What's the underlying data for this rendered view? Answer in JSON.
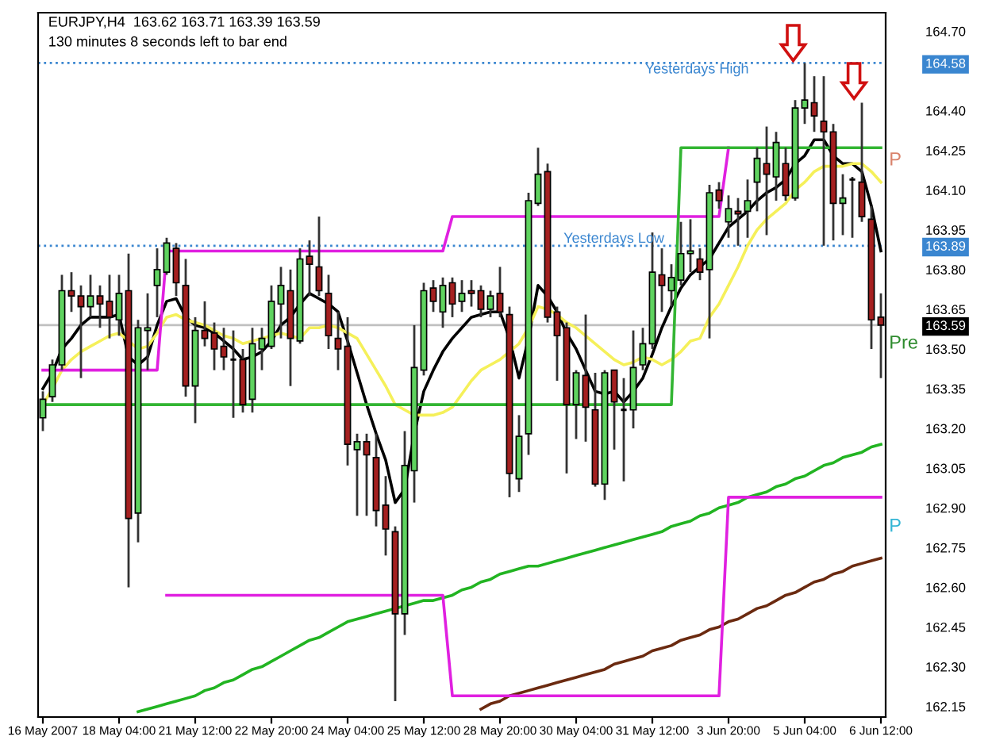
{
  "chart_data": {
    "type": "candlestick",
    "categories": [
      "16 May 2007",
      null,
      null,
      null,
      null,
      null,
      null,
      null,
      "18 May 04:00",
      null,
      null,
      null,
      null,
      null,
      null,
      null,
      "21 May 12:00",
      null,
      null,
      null,
      null,
      null,
      null,
      null,
      "22 May 20:00",
      null,
      null,
      null,
      null,
      null,
      null,
      null,
      "24 May 04:00",
      null,
      null,
      null,
      null,
      null,
      null,
      null,
      "25 May 12:00",
      null,
      null,
      null,
      null,
      null,
      null,
      null,
      "28 May 20:00",
      null,
      null,
      null,
      null,
      null,
      null,
      null,
      "30 May 04:00",
      null,
      null,
      null,
      null,
      null,
      null,
      null,
      "31 May 12:00",
      null,
      null,
      null,
      null,
      null,
      null,
      null,
      "3 Jun 20:00",
      null,
      null,
      null,
      null,
      null,
      null,
      null,
      "5 Jun 04:00",
      null,
      null,
      null,
      null,
      null,
      null,
      null,
      "6 Jun 12:00"
    ],
    "ohlc": [
      [
        163.24,
        163.34,
        163.19,
        163.31
      ],
      [
        163.32,
        163.46,
        163.3,
        163.44
      ],
      [
        163.44,
        163.78,
        163.42,
        163.72
      ],
      [
        163.72,
        163.79,
        163.64,
        163.7
      ],
      [
        163.7,
        163.74,
        163.39,
        163.66
      ],
      [
        163.66,
        163.78,
        163.62,
        163.7
      ],
      [
        163.7,
        163.74,
        163.58,
        163.67
      ],
      [
        163.68,
        163.78,
        163.54,
        163.62
      ],
      [
        163.61,
        163.78,
        163.55,
        163.71
      ],
      [
        163.72,
        163.86,
        162.6,
        162.86
      ],
      [
        162.88,
        163.61,
        162.77,
        163.58
      ],
      [
        163.57,
        163.71,
        163.42,
        163.58
      ],
      [
        163.74,
        163.88,
        163.62,
        163.8
      ],
      [
        163.79,
        163.92,
        163.78,
        163.9
      ],
      [
        163.88,
        163.9,
        163.7,
        163.75
      ],
      [
        163.74,
        163.84,
        163.32,
        163.36
      ],
      [
        163.36,
        163.62,
        163.22,
        163.57
      ],
      [
        163.57,
        163.68,
        163.51,
        163.54
      ],
      [
        163.56,
        163.6,
        163.42,
        163.5
      ],
      [
        163.51,
        163.58,
        163.42,
        163.47
      ],
      [
        163.46,
        163.57,
        163.24,
        163.46
      ],
      [
        163.46,
        163.5,
        163.26,
        163.29
      ],
      [
        163.31,
        163.58,
        163.26,
        163.52
      ],
      [
        163.5,
        163.58,
        163.42,
        163.54
      ],
      [
        163.51,
        163.74,
        163.5,
        163.68
      ],
      [
        163.67,
        163.81,
        163.54,
        163.74
      ],
      [
        163.72,
        163.8,
        163.36,
        163.54
      ],
      [
        163.53,
        163.88,
        163.52,
        163.84
      ],
      [
        163.85,
        163.91,
        163.7,
        163.82
      ],
      [
        163.81,
        164.0,
        163.7,
        163.72
      ],
      [
        163.71,
        163.78,
        163.5,
        163.55
      ],
      [
        163.54,
        163.64,
        163.42,
        163.5
      ],
      [
        163.51,
        163.62,
        163.06,
        163.14
      ],
      [
        163.12,
        163.18,
        162.87,
        163.15
      ],
      [
        163.15,
        163.18,
        162.87,
        163.1
      ],
      [
        163.09,
        163.18,
        162.83,
        162.89
      ],
      [
        162.91,
        163.02,
        162.72,
        162.82
      ],
      [
        162.81,
        162.83,
        162.17,
        162.5
      ],
      [
        162.5,
        163.19,
        162.42,
        163.06
      ],
      [
        163.04,
        163.59,
        162.92,
        163.43
      ],
      [
        163.42,
        163.75,
        163.4,
        163.72
      ],
      [
        163.73,
        163.76,
        163.64,
        163.68
      ],
      [
        163.64,
        163.77,
        163.58,
        163.74
      ],
      [
        163.75,
        163.77,
        163.62,
        163.67
      ],
      [
        163.68,
        163.76,
        163.64,
        163.71
      ],
      [
        163.72,
        163.76,
        163.66,
        163.71
      ],
      [
        163.72,
        163.74,
        163.62,
        163.65
      ],
      [
        163.65,
        163.72,
        163.62,
        163.7
      ],
      [
        163.71,
        163.81,
        163.62,
        163.64
      ],
      [
        163.63,
        163.66,
        162.94,
        163.03
      ],
      [
        163.01,
        163.25,
        162.96,
        163.17
      ],
      [
        163.18,
        164.09,
        163.1,
        164.06
      ],
      [
        164.05,
        164.26,
        164.04,
        164.16
      ],
      [
        164.17,
        164.2,
        163.6,
        163.62
      ],
      [
        163.64,
        163.66,
        163.38,
        163.55
      ],
      [
        163.58,
        163.6,
        163.03,
        163.29
      ],
      [
        163.29,
        163.42,
        163.16,
        163.41
      ],
      [
        163.4,
        163.63,
        163.15,
        163.28
      ],
      [
        163.27,
        163.41,
        162.98,
        162.99
      ],
      [
        162.99,
        163.42,
        162.93,
        163.41
      ],
      [
        163.42,
        163.42,
        163.12,
        163.3
      ],
      [
        163.27,
        163.39,
        163.0,
        163.27
      ],
      [
        163.27,
        163.57,
        163.2,
        163.43
      ],
      [
        163.44,
        163.58,
        163.42,
        163.52
      ],
      [
        163.52,
        163.94,
        163.5,
        163.79
      ],
      [
        163.78,
        163.88,
        163.64,
        163.74
      ],
      [
        163.72,
        163.82,
        163.66,
        163.77
      ],
      [
        163.76,
        163.98,
        163.74,
        163.86
      ],
      [
        163.86,
        163.99,
        163.79,
        163.87
      ],
      [
        163.84,
        163.88,
        163.76,
        163.79
      ],
      [
        163.8,
        164.12,
        163.54,
        164.09
      ],
      [
        164.1,
        164.13,
        164.03,
        164.06
      ],
      [
        163.98,
        164.08,
        163.92,
        164.03
      ],
      [
        164.02,
        164.07,
        163.89,
        164.01
      ],
      [
        164.02,
        164.14,
        163.92,
        164.06
      ],
      [
        164.13,
        164.26,
        164.02,
        164.22
      ],
      [
        164.2,
        164.34,
        163.93,
        164.16
      ],
      [
        164.15,
        164.32,
        164.06,
        164.28
      ],
      [
        164.2,
        164.26,
        164.06,
        164.08
      ],
      [
        164.07,
        164.44,
        164.06,
        164.41
      ],
      [
        164.41,
        164.58,
        164.35,
        164.44
      ],
      [
        164.43,
        164.53,
        164.32,
        164.38
      ],
      [
        164.36,
        164.53,
        163.89,
        164.32
      ],
      [
        164.32,
        164.35,
        163.91,
        164.05
      ],
      [
        164.05,
        164.16,
        163.93,
        164.07
      ],
      [
        164.14,
        164.15,
        163.92,
        164.14
      ],
      [
        164.13,
        164.43,
        163.98,
        164.0
      ],
      [
        163.99,
        164.04,
        163.5,
        163.61
      ],
      [
        163.62,
        163.71,
        163.39,
        163.59
      ]
    ],
    "series": [
      {
        "type": "line",
        "color": "#000000",
        "values": [
          163.35,
          163.41,
          163.5,
          163.54,
          163.59,
          163.62,
          163.62,
          163.62,
          163.63,
          163.47,
          163.44,
          163.47,
          163.59,
          163.68,
          163.69,
          163.62,
          163.59,
          163.58,
          163.56,
          163.53,
          163.5,
          163.46,
          163.47,
          163.49,
          163.53,
          163.59,
          163.62,
          163.67,
          163.71,
          163.69,
          163.67,
          163.64,
          163.53,
          163.41,
          163.29,
          163.18,
          163.08,
          162.92,
          162.97,
          163.18,
          163.34,
          163.42,
          163.49,
          163.54,
          163.58,
          163.62,
          163.63,
          163.64,
          163.64,
          163.54,
          163.39,
          163.54,
          163.74,
          163.7,
          163.64,
          163.56,
          163.5,
          163.42,
          163.34,
          163.33,
          163.34,
          163.3,
          163.34,
          163.39,
          163.48,
          163.58,
          163.66,
          163.73,
          163.78,
          163.81,
          163.84,
          163.9,
          163.96,
          163.99,
          164.02,
          164.06,
          164.09,
          164.11,
          164.14,
          164.2,
          164.23,
          164.29,
          164.29,
          164.23,
          164.2,
          164.2,
          164.17,
          164.04,
          163.87
        ]
      },
      {
        "type": "line",
        "color": "#f5f05a",
        "values": [
          163.29,
          163.35,
          163.42,
          163.46,
          163.49,
          163.51,
          163.53,
          163.55,
          163.56,
          163.53,
          163.5,
          163.51,
          163.56,
          163.62,
          163.63,
          163.61,
          163.6,
          163.59,
          163.57,
          163.55,
          163.54,
          163.52,
          163.53,
          163.54,
          163.55,
          163.56,
          163.55,
          163.54,
          163.58,
          163.58,
          163.59,
          163.58,
          163.56,
          163.54,
          163.48,
          163.42,
          163.36,
          163.29,
          163.27,
          163.25,
          163.25,
          163.25,
          163.26,
          163.28,
          163.33,
          163.38,
          163.42,
          163.44,
          163.46,
          163.49,
          163.52,
          163.58,
          163.66,
          163.65,
          163.63,
          163.6,
          163.58,
          163.55,
          163.52,
          163.49,
          163.46,
          163.44,
          163.45,
          163.47,
          163.46,
          163.44,
          163.46,
          163.49,
          163.53,
          163.54,
          163.62,
          163.67,
          163.74,
          163.81,
          163.89,
          163.95,
          163.99,
          164.02,
          164.05,
          164.1,
          164.13,
          164.17,
          164.19,
          164.19,
          164.19,
          164.2,
          164.2,
          164.17,
          164.13
        ]
      },
      {
        "type": "line",
        "color": "#22b422",
        "values": [
          null,
          null,
          null,
          null,
          null,
          null,
          null,
          null,
          null,
          null,
          162.13,
          162.14,
          162.15,
          162.16,
          162.17,
          162.18,
          162.19,
          162.21,
          162.22,
          162.24,
          162.25,
          162.27,
          162.29,
          162.3,
          162.32,
          162.34,
          162.36,
          162.38,
          162.4,
          162.41,
          162.43,
          162.45,
          162.47,
          162.48,
          162.49,
          162.5,
          162.51,
          162.52,
          162.53,
          162.54,
          162.55,
          162.55,
          162.56,
          162.57,
          162.59,
          162.6,
          162.62,
          162.63,
          162.65,
          162.66,
          162.67,
          162.68,
          162.68,
          162.69,
          162.7,
          162.71,
          162.72,
          162.73,
          162.74,
          162.75,
          162.76,
          162.77,
          162.78,
          162.79,
          162.8,
          162.81,
          162.83,
          162.84,
          162.85,
          162.87,
          162.88,
          162.9,
          162.91,
          162.92,
          162.94,
          162.95,
          162.96,
          162.98,
          162.99,
          163.01,
          163.02,
          163.04,
          163.06,
          163.07,
          163.09,
          163.1,
          163.11,
          163.13,
          163.14
        ]
      },
      {
        "type": "line",
        "color": "#6b2a10",
        "values": [
          null,
          null,
          null,
          null,
          null,
          null,
          null,
          null,
          null,
          null,
          null,
          null,
          null,
          null,
          null,
          null,
          null,
          null,
          null,
          null,
          null,
          null,
          null,
          null,
          null,
          null,
          null,
          null,
          null,
          null,
          null,
          null,
          null,
          null,
          null,
          null,
          null,
          null,
          null,
          null,
          null,
          null,
          null,
          null,
          null,
          null,
          162.14,
          162.16,
          162.17,
          162.19,
          162.2,
          162.21,
          162.22,
          162.23,
          162.24,
          162.25,
          162.26,
          162.27,
          162.28,
          162.29,
          162.31,
          162.32,
          162.33,
          162.34,
          162.36,
          162.37,
          162.38,
          162.4,
          162.41,
          162.42,
          162.44,
          162.45,
          162.47,
          162.48,
          162.5,
          162.52,
          162.53,
          162.55,
          162.57,
          162.58,
          162.6,
          162.62,
          162.63,
          162.65,
          162.66,
          162.68,
          162.69,
          162.7,
          162.71
        ]
      },
      {
        "type": "line",
        "color": "#e020e0",
        "values": [
          163.42,
          163.42,
          163.42,
          163.42,
          163.42,
          163.42,
          163.42,
          163.42,
          163.42,
          163.42,
          163.42,
          163.42,
          163.42,
          163.87,
          163.87,
          163.87,
          163.87,
          163.87,
          163.87,
          163.87,
          163.87,
          163.87,
          163.87,
          163.87,
          163.87,
          163.87,
          163.87,
          163.87,
          163.87,
          163.87,
          163.87,
          163.87,
          163.87,
          163.87,
          163.87,
          163.87,
          163.87,
          163.87,
          163.87,
          163.87,
          163.87,
          163.87,
          163.87,
          164.0,
          164.0,
          164.0,
          164.0,
          164.0,
          164.0,
          164.0,
          164.0,
          164.0,
          164.0,
          164.0,
          164.0,
          164.0,
          164.0,
          164.0,
          164.0,
          164.0,
          164.0,
          164.0,
          164.0,
          164.0,
          164.0,
          164.0,
          164.0,
          164.0,
          164.0,
          164.0,
          164.0,
          164.0,
          164.26,
          null,
          null,
          null,
          null,
          null,
          null,
          null,
          null,
          null,
          null,
          null,
          null,
          null,
          null,
          null,
          null
        ]
      },
      {
        "type": "line",
        "color": "#e020e0",
        "values": [
          null,
          null,
          null,
          null,
          null,
          null,
          null,
          null,
          null,
          null,
          null,
          null,
          null,
          162.57,
          162.57,
          162.57,
          162.57,
          162.57,
          162.57,
          162.57,
          162.57,
          162.57,
          162.57,
          162.57,
          162.57,
          162.57,
          162.57,
          162.57,
          162.57,
          162.57,
          162.57,
          162.57,
          162.57,
          162.57,
          162.57,
          162.57,
          162.57,
          162.57,
          162.57,
          162.57,
          162.57,
          162.57,
          162.57,
          162.19,
          162.19,
          162.19,
          162.19,
          162.19,
          162.19,
          162.19,
          162.19,
          162.19,
          162.19,
          162.19,
          162.19,
          162.19,
          162.19,
          162.19,
          162.19,
          162.19,
          162.19,
          162.19,
          162.19,
          162.19,
          162.19,
          162.19,
          162.19,
          162.19,
          162.19,
          162.19,
          162.19,
          162.19,
          162.94,
          162.94,
          162.94,
          162.94,
          162.94,
          162.94,
          162.94,
          162.94,
          162.94,
          162.94,
          162.94,
          162.94,
          162.94,
          162.94,
          162.94,
          162.94,
          162.94
        ]
      },
      {
        "type": "line",
        "color": "#33b533",
        "values": [
          163.29,
          163.29,
          163.29,
          163.29,
          163.29,
          163.29,
          163.29,
          163.29,
          163.29,
          163.29,
          163.29,
          163.29,
          163.29,
          163.29,
          163.29,
          163.29,
          163.29,
          163.29,
          163.29,
          163.29,
          163.29,
          163.29,
          163.29,
          163.29,
          163.29,
          163.29,
          163.29,
          163.29,
          163.29,
          163.29,
          163.29,
          163.29,
          163.29,
          163.29,
          163.29,
          163.29,
          163.29,
          163.29,
          163.29,
          163.29,
          163.29,
          163.29,
          163.29,
          163.29,
          163.29,
          163.29,
          163.29,
          163.29,
          163.29,
          163.29,
          163.29,
          163.29,
          163.29,
          163.29,
          163.29,
          163.29,
          163.29,
          163.29,
          163.29,
          163.29,
          163.29,
          163.29,
          163.29,
          163.29,
          163.29,
          163.29,
          163.29,
          164.26,
          164.26,
          164.26,
          164.26,
          164.26,
          164.26,
          164.26,
          164.26,
          164.26,
          164.26,
          164.26,
          164.26,
          164.26,
          164.26,
          164.26,
          164.26,
          164.26,
          164.26,
          164.26,
          164.26,
          164.26,
          164.26
        ]
      }
    ],
    "ylim": [
      162.11,
      164.77
    ],
    "yticks": [
      {
        "value": 164.7,
        "label": "164.70"
      },
      {
        "value": 164.58,
        "label": "164.58"
      },
      {
        "value": 164.4,
        "label": "164.40"
      },
      164.25,
      {
        "value": 164.1,
        "label": "164.10"
      },
      163.95,
      {
        "value": 163.89,
        "label": "163.89"
      },
      {
        "value": 163.8,
        "label": "163.80"
      },
      163.65,
      {
        "value": 163.59,
        "label": "163.59"
      },
      {
        "value": 163.5,
        "label": "163.50"
      },
      163.35,
      {
        "value": 163.2,
        "label": "163.20"
      },
      163.05,
      {
        "value": 162.9,
        "label": "162.90"
      },
      162.75,
      {
        "value": 162.6,
        "label": "162.60"
      },
      162.45,
      {
        "value": 162.3,
        "label": "162.30"
      },
      162.15
    ],
    "ref_lines": [
      {
        "axis": "y",
        "value": 164.58,
        "label": "Yesterdays High",
        "color": "#3a86d0",
        "line_style": "dotted"
      },
      {
        "axis": "y",
        "value": 163.89,
        "label": "Yesterdays Low",
        "color": "#3a86d0",
        "line_style": "dotted"
      },
      {
        "axis": "y",
        "value": 163.59,
        "color": "#c0c0c0",
        "line_style": "solid"
      }
    ],
    "annotations": [
      "EURJPY,H4  163.62 163.71 163.39 163.59",
      "130 minutes 8 seconds left to bar end",
      "P",
      "Pre",
      "P"
    ],
    "grid": false,
    "legend": false
  }
}
